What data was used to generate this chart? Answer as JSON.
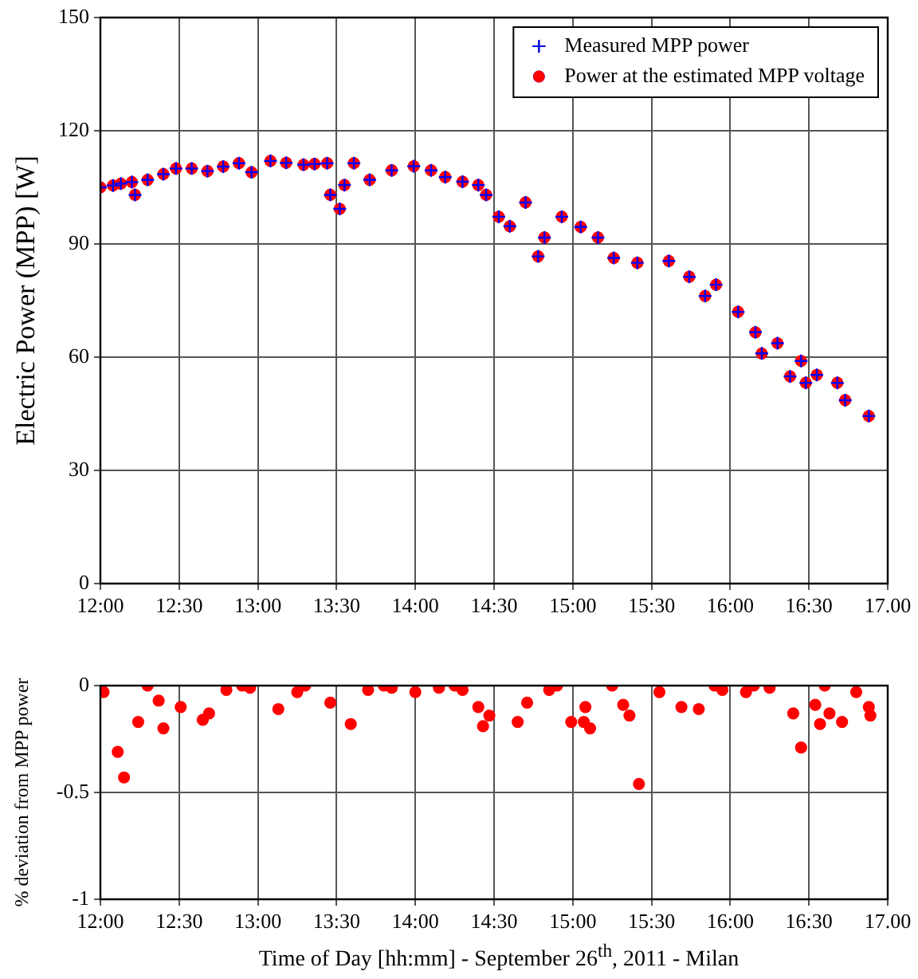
{
  "chart_data": [
    {
      "type": "scatter",
      "ylabel": "Electric Power (MPP) [W]",
      "xlim": [
        12,
        17
      ],
      "ylim": [
        0,
        150
      ],
      "xticks": [
        {
          "value": 12,
          "label": "12:00"
        },
        {
          "value": 12.5,
          "label": "12:30"
        },
        {
          "value": 13,
          "label": "13:00"
        },
        {
          "value": 13.5,
          "label": "13:30"
        },
        {
          "value": 14,
          "label": "14:00"
        },
        {
          "value": 14.5,
          "label": "14:30"
        },
        {
          "value": 15,
          "label": "15:00"
        },
        {
          "value": 15.5,
          "label": "15:30"
        },
        {
          "value": 16,
          "label": "16:00"
        },
        {
          "value": 16.5,
          "label": "16:30"
        },
        {
          "value": 17,
          "label": "17.00"
        }
      ],
      "yticks": [
        0,
        30,
        60,
        90,
        120,
        150
      ],
      "grid": true,
      "legend": "top right",
      "x": [
        12.0,
        12.08,
        12.13,
        12.2,
        12.22,
        12.3,
        12.4,
        12.48,
        12.58,
        12.68,
        12.78,
        12.88,
        12.96,
        13.08,
        13.18,
        13.29,
        13.36,
        13.44,
        13.46,
        13.52,
        13.55,
        13.61,
        13.71,
        13.85,
        13.99,
        14.1,
        14.19,
        14.3,
        14.4,
        14.45,
        14.53,
        14.6,
        14.7,
        14.78,
        14.82,
        14.93,
        15.05,
        15.16,
        15.26,
        15.41,
        15.61,
        15.74,
        15.84,
        15.91,
        16.05,
        16.16,
        16.2,
        16.3,
        16.38,
        16.45,
        16.48,
        16.55,
        16.68,
        16.73,
        16.88
      ],
      "series": [
        {
          "name": "Measured MPP power",
          "color": "#0000ff",
          "marker": "cross",
          "values": [
            105,
            105.5,
            106,
            106.4,
            103,
            107,
            108.5,
            110,
            110,
            109.3,
            110.5,
            111.4,
            109,
            112,
            111.5,
            111,
            111.2,
            111.4,
            103,
            99.3,
            105.6,
            111.4,
            107,
            109.5,
            110.6,
            109.5,
            107.7,
            106.5,
            105.6,
            103,
            97.2,
            94.7,
            101,
            86.7,
            91.7,
            97.2,
            94.5,
            91.7,
            86.3,
            85,
            85.5,
            81.3,
            76.2,
            79.2,
            72,
            66.6,
            61,
            63.7,
            54.9,
            59,
            53.2,
            55.3,
            53.2,
            48.6,
            44.4
          ]
        },
        {
          "name": "Power at the estimated MPP voltage",
          "color": "#ff0000",
          "marker": "circle",
          "values": [
            105,
            105.5,
            106,
            106.4,
            103,
            107,
            108.5,
            110,
            110,
            109.3,
            110.5,
            111.4,
            109,
            112,
            111.5,
            111,
            111.2,
            111.4,
            103,
            99.3,
            105.6,
            111.4,
            107,
            109.5,
            110.6,
            109.5,
            107.7,
            106.5,
            105.6,
            103,
            97.2,
            94.7,
            101,
            86.7,
            91.7,
            97.2,
            94.5,
            91.7,
            86.3,
            85,
            85.5,
            81.3,
            76.2,
            79.2,
            72,
            66.6,
            61,
            63.7,
            54.9,
            59,
            53.2,
            55.3,
            53.2,
            48.6,
            44.4
          ]
        }
      ]
    },
    {
      "type": "scatter",
      "xlabel": "Time of Day [hh:mm] - September 26$^{th}$, 2011 - Milan",
      "ylabel": "% deviation from MPP power",
      "xlim": [
        12,
        17
      ],
      "ylim": [
        -1,
        0
      ],
      "xticks": [
        {
          "value": 12,
          "label": "12:00"
        },
        {
          "value": 12.5,
          "label": "12:30"
        },
        {
          "value": 13,
          "label": "13:00"
        },
        {
          "value": 13.5,
          "label": "13:30"
        },
        {
          "value": 14,
          "label": "14:00"
        },
        {
          "value": 14.5,
          "label": "14:30"
        },
        {
          "value": 15,
          "label": "15:00"
        },
        {
          "value": 15.5,
          "label": "15:30"
        },
        {
          "value": 16,
          "label": "16:00"
        },
        {
          "value": 16.5,
          "label": "16:30"
        },
        {
          "value": 17,
          "label": "17.00"
        }
      ],
      "yticks": [
        -1,
        -0.5,
        0
      ],
      "grid": true,
      "series": [
        {
          "color": "#ff0000",
          "marker": "circle",
          "x": [
            12.02,
            12.11,
            12.15,
            12.24,
            12.37,
            12.4,
            12.51,
            12.65,
            12.69,
            12.8,
            12.95,
            13.13,
            13.25,
            13.46,
            13.59,
            13.7,
            13.85,
            14.0,
            14.15,
            14.3,
            14.4,
            14.43,
            14.47,
            14.65,
            14.71,
            14.85,
            14.99,
            15.07,
            15.08,
            15.11,
            15.32,
            15.36,
            15.42,
            15.55,
            15.69,
            15.8,
            15.95,
            16.1,
            16.25,
            16.4,
            16.45,
            16.54,
            16.57,
            16.63,
            16.71,
            16.8,
            16.88,
            16.89,
            12.3,
            12.9,
            13.3,
            13.8,
            14.25,
            14.9,
            15.25,
            15.9,
            16.15,
            16.6
          ],
          "values": [
            -0.03,
            -0.31,
            -0.43,
            -0.17,
            -0.07,
            -0.2,
            -0.1,
            -0.16,
            -0.13,
            -0.02,
            -0.01,
            -0.11,
            -0.03,
            -0.08,
            -0.18,
            -0.02,
            -0.01,
            -0.03,
            -0.01,
            -0.02,
            -0.1,
            -0.19,
            -0.14,
            -0.17,
            -0.08,
            -0.02,
            -0.17,
            -0.17,
            -0.1,
            -0.2,
            -0.09,
            -0.14,
            -0.46,
            -0.03,
            -0.1,
            -0.11,
            -0.02,
            -0.03,
            -0.01,
            -0.13,
            -0.29,
            -0.09,
            -0.18,
            -0.13,
            -0.17,
            -0.03,
            -0.1,
            -0.14,
            0,
            0,
            0,
            0,
            0,
            0,
            0,
            0,
            0,
            0
          ]
        }
      ]
    }
  ]
}
